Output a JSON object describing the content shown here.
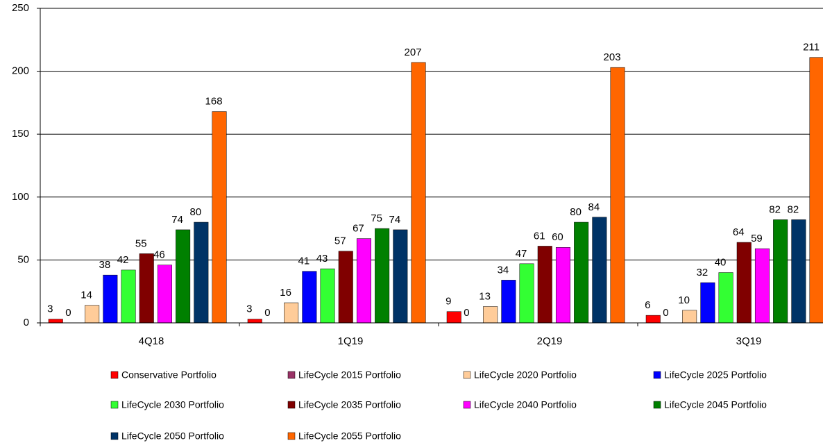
{
  "chart_data": {
    "type": "bar",
    "categories": [
      "4Q18",
      "1Q19",
      "2Q19",
      "3Q19"
    ],
    "series": [
      {
        "name": "Conservative Portfolio",
        "color": "#ff0000",
        "values": [
          3,
          3,
          9,
          6
        ]
      },
      {
        "name": "LifeCycle 2015 Portfolio",
        "color": "#993366",
        "values": [
          0,
          0,
          0,
          0
        ]
      },
      {
        "name": "LifeCycle 2020 Portfolio",
        "color": "#ffcc99",
        "values": [
          14,
          16,
          13,
          10
        ]
      },
      {
        "name": "LifeCycle 2025 Portfolio",
        "color": "#0000ff",
        "values": [
          38,
          41,
          34,
          32
        ]
      },
      {
        "name": "LifeCycle 2030 Portfolio",
        "color": "#33ff33",
        "values": [
          42,
          43,
          47,
          40
        ]
      },
      {
        "name": "LifeCycle 2035 Portfolio",
        "color": "#800000",
        "values": [
          55,
          57,
          61,
          64
        ]
      },
      {
        "name": "LifeCycle 2040 Portfolio",
        "color": "#ff00ff",
        "values": [
          46,
          67,
          60,
          59
        ]
      },
      {
        "name": "LifeCycle 2045 Portfolio",
        "color": "#008000",
        "values": [
          74,
          75,
          80,
          82
        ]
      },
      {
        "name": "LifeCycle 2050 Portfolio",
        "color": "#003366",
        "values": [
          80,
          74,
          84,
          82
        ]
      },
      {
        "name": "LifeCycle 2055 Portfolio",
        "color": "#ff6600",
        "values": [
          168,
          207,
          203,
          211
        ]
      }
    ],
    "ylim": [
      0,
      250
    ],
    "yticks": [
      0,
      50,
      100,
      150,
      200,
      250
    ],
    "grid": true,
    "legend": "bottom"
  }
}
